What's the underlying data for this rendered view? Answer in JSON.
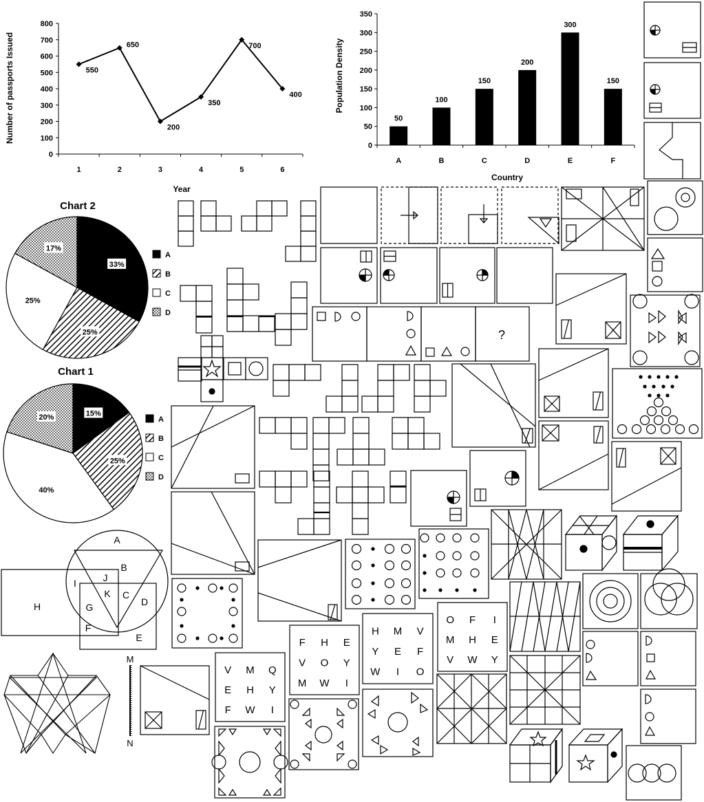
{
  "chart_data": [
    {
      "type": "line",
      "x": [
        1,
        2,
        3,
        4,
        5,
        6
      ],
      "values": [
        550,
        650,
        200,
        350,
        700,
        400
      ],
      "xlabel": "Year",
      "ylabel": "Number of passports Issued",
      "ylim": [
        0,
        800
      ],
      "yticks": [
        "0",
        "100",
        "200",
        "300",
        "400",
        "500",
        "600",
        "700",
        "800"
      ],
      "xticks": [
        "1",
        "2",
        "3",
        "4",
        "5",
        "6"
      ],
      "data_labels": [
        "550",
        "650",
        "200",
        "350",
        "700",
        "400"
      ],
      "grid": false,
      "color": "#000000"
    },
    {
      "type": "bar",
      "categories": [
        "A",
        "B",
        "C",
        "D",
        "E",
        "F"
      ],
      "values": [
        50,
        100,
        150,
        200,
        300,
        150
      ],
      "xlabel": "Country",
      "ylabel": "Population Density",
      "ylim": [
        0,
        350
      ],
      "yticks": [
        "0",
        "50",
        "100",
        "150",
        "200",
        "250",
        "300",
        "350"
      ],
      "data_labels": [
        "50",
        "100",
        "150",
        "200",
        "300",
        "150"
      ],
      "grid": false,
      "color": "#000000"
    },
    {
      "type": "pie",
      "title": "Chart 2",
      "labels": [
        "A",
        "B",
        "C",
        "D"
      ],
      "values": [
        33,
        25,
        25,
        17
      ],
      "data_labels": [
        "33%",
        "25%",
        "25%",
        "17%"
      ],
      "legend": "right",
      "fills": [
        "solid",
        "stripes",
        "white",
        "dots"
      ]
    },
    {
      "type": "pie",
      "title": "Chart 1",
      "labels": [
        "A",
        "B",
        "C",
        "D"
      ],
      "values": [
        15,
        25,
        40,
        20
      ],
      "data_labels": [
        "15%",
        "25%",
        "40%",
        "20%"
      ],
      "legend": "right",
      "fills": [
        "solid",
        "stripes",
        "white",
        "dots"
      ]
    }
  ],
  "venn": {
    "labels": [
      "A",
      "B",
      "J",
      "I",
      "K",
      "C",
      "D",
      "G",
      "F",
      "E",
      "H"
    ]
  },
  "mirror": {
    "top": "M",
    "bottom": "N"
  },
  "question_mark": "?",
  "letter_grids": {
    "grid1": [
      "F",
      "H",
      "E",
      "V",
      "O",
      "Y",
      "M",
      "W",
      "I"
    ],
    "grid2": [
      "H",
      "M",
      "V",
      "Y",
      "E",
      "F",
      "W",
      "I",
      "O"
    ],
    "grid3": [
      "O",
      "F",
      "I",
      "M",
      "H",
      "E",
      "V",
      "W",
      "Y"
    ],
    "grid4": [
      "V",
      "M",
      "Q",
      "E",
      "H",
      "Y",
      "F",
      "W",
      "I"
    ]
  }
}
